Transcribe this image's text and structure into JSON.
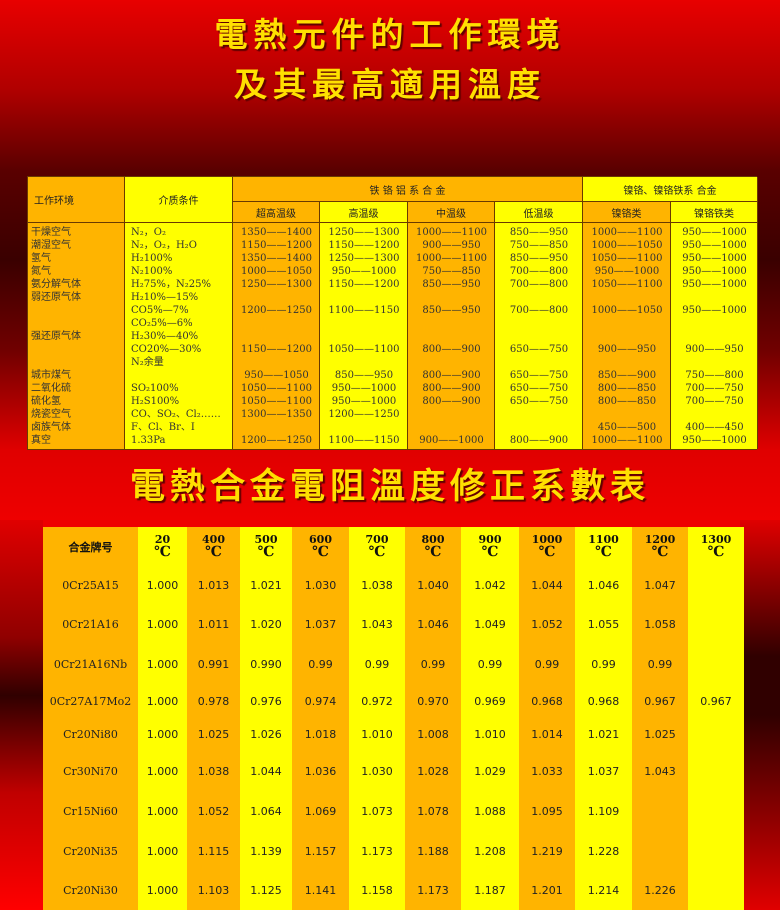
{
  "titles": {
    "line1": "電熱元件的工作環境",
    "line2": "及其最高適用溫度",
    "section2": "電熱合金電阻溫度修正系數表"
  },
  "colors": {
    "orange": "#ffb400",
    "yellow": "#ffff00",
    "title": "#ffe000",
    "background": "#e00000"
  },
  "table1": {
    "headers": {
      "env": "工作环境",
      "medium": "介质条件",
      "group_fecral": "铁 铬 铝 系 合 金",
      "group_nicr": "镍铬、镍铬铁系 合金",
      "sub": [
        "超高温级",
        "高温级",
        "中温级",
        "低温级",
        "镍铬类",
        "镍铬铁类"
      ]
    },
    "lines": [
      [
        "干燥空气",
        "N₂，O₂",
        "1350——1400",
        "1250——1300",
        "1000——1100",
        "850——950",
        "1000——1100",
        "950——1000"
      ],
      [
        "潮湿空气",
        "N₂，O₂，H₂O",
        "1150——1200",
        "1150——1200",
        "900——950",
        "750——850",
        "1000——1050",
        "950——1000"
      ],
      [
        "氢气",
        "H₂100%",
        "1350——1400",
        "1250——1300",
        "1000——1100",
        "850——950",
        "1050——1100",
        "950——1000"
      ],
      [
        "氮气",
        "N₂100%",
        "1000——1050",
        "950——1000",
        "750——850",
        "700——800",
        "950——1000",
        "950——1000"
      ],
      [
        "氨分解气体",
        "H₂75%，N₂25%",
        "1250——1300",
        "1150——1200",
        "850——950",
        "700——800",
        "1050——1100",
        "950——1000"
      ],
      [
        "弱还原气体",
        "H₂10%—15%",
        "",
        "",
        "",
        "",
        "",
        ""
      ],
      [
        "",
        "CO5%—7%",
        "1200——1250",
        "1100——1150",
        "850——950",
        "700——800",
        "1000——1050",
        "950——1000"
      ],
      [
        "",
        "CO₂5%—6%",
        "",
        "",
        "",
        "",
        "",
        ""
      ],
      [
        "强还原气体",
        "H₂30%—40%",
        "",
        "",
        "",
        "",
        "",
        ""
      ],
      [
        "",
        "CO20%—30%",
        "1150——1200",
        "1050——1100",
        "800——900",
        "650——750",
        "900——950",
        "900——950"
      ],
      [
        "",
        "N₂余量",
        "",
        "",
        "",
        "",
        "",
        ""
      ],
      [
        "城市煤气",
        "",
        "950——1050",
        "850——950",
        "800——900",
        "650——750",
        "850——900",
        "750——800"
      ],
      [
        "二氧化硫",
        "SO₂100%",
        "1050——1100",
        "950——1000",
        "800——900",
        "650——750",
        "800——850",
        "700——750"
      ],
      [
        "硫化氢",
        "H₂S100%",
        "1050——1100",
        "950——1000",
        "800——900",
        "650——750",
        "800——850",
        "700——750"
      ],
      [
        "烧瓷空气",
        "CO、SO₂、Cl₂……",
        "1300——1350",
        "1200——1250",
        "",
        "",
        "",
        ""
      ],
      [
        "卤族气体",
        "F、Cl、Br、I",
        "",
        "",
        "",
        "",
        "450——500",
        "400——450"
      ],
      [
        "真空",
        "1.33Pa",
        "1200——1250",
        "1100——1150",
        "900——1000",
        "800——900",
        "1000——1100",
        "950——1000"
      ]
    ]
  },
  "table2": {
    "header_name": "合金牌号",
    "temps": [
      "20",
      "400",
      "500",
      "600",
      "700",
      "800",
      "900",
      "1000",
      "1100",
      "1200",
      "1300"
    ],
    "unit": "℃",
    "rows": [
      {
        "name": "0Cr25A15",
        "values": [
          "1.000",
          "1.013",
          "1.021",
          "1.030",
          "1.038",
          "1.040",
          "1.042",
          "1.044",
          "1.046",
          "1.047",
          ""
        ]
      },
      {
        "name": "0Cr21A16",
        "values": [
          "1.000",
          "1.011",
          "1.020",
          "1.037",
          "1.043",
          "1.046",
          "1.049",
          "1.052",
          "1.055",
          "1.058",
          ""
        ]
      },
      {
        "name": "0Cr21A16Nb",
        "values": [
          "1.000",
          "0.991",
          "0.990",
          "0.99",
          "0.99",
          "0.99",
          "0.99",
          "0.99",
          "0.99",
          "0.99",
          ""
        ]
      },
      {
        "name": "0Cr27A17Mo2",
        "values": [
          "1.000",
          "0.978",
          "0.976",
          "0.974",
          "0.972",
          "0.970",
          "0.969",
          "0.968",
          "0.968",
          "0.967",
          "0.967"
        ]
      },
      {
        "name": "Cr20Ni80",
        "values": [
          "1.000",
          "1.025",
          "1.026",
          "1.018",
          "1.010",
          "1.008",
          "1.010",
          "1.014",
          "1.021",
          "1.025",
          ""
        ]
      },
      {
        "name": "Cr30Ni70",
        "values": [
          "1.000",
          "1.038",
          "1.044",
          "1.036",
          "1.030",
          "1.028",
          "1.029",
          "1.033",
          "1.037",
          "1.043",
          ""
        ]
      },
      {
        "name": "Cr15Ni60",
        "values": [
          "1.000",
          "1.052",
          "1.064",
          "1.069",
          "1.073",
          "1.078",
          "1.088",
          "1.095",
          "1.109",
          "",
          ""
        ]
      },
      {
        "name": "Cr20Ni35",
        "values": [
          "1.000",
          "1.115",
          "1.139",
          "1.157",
          "1.173",
          "1.188",
          "1.208",
          "1.219",
          "1.228",
          "",
          ""
        ]
      },
      {
        "name": "Cr20Ni30",
        "values": [
          "1.000",
          "1.103",
          "1.125",
          "1.141",
          "1.158",
          "1.173",
          "1.187",
          "1.201",
          "1.214",
          "1.226",
          ""
        ]
      }
    ]
  }
}
